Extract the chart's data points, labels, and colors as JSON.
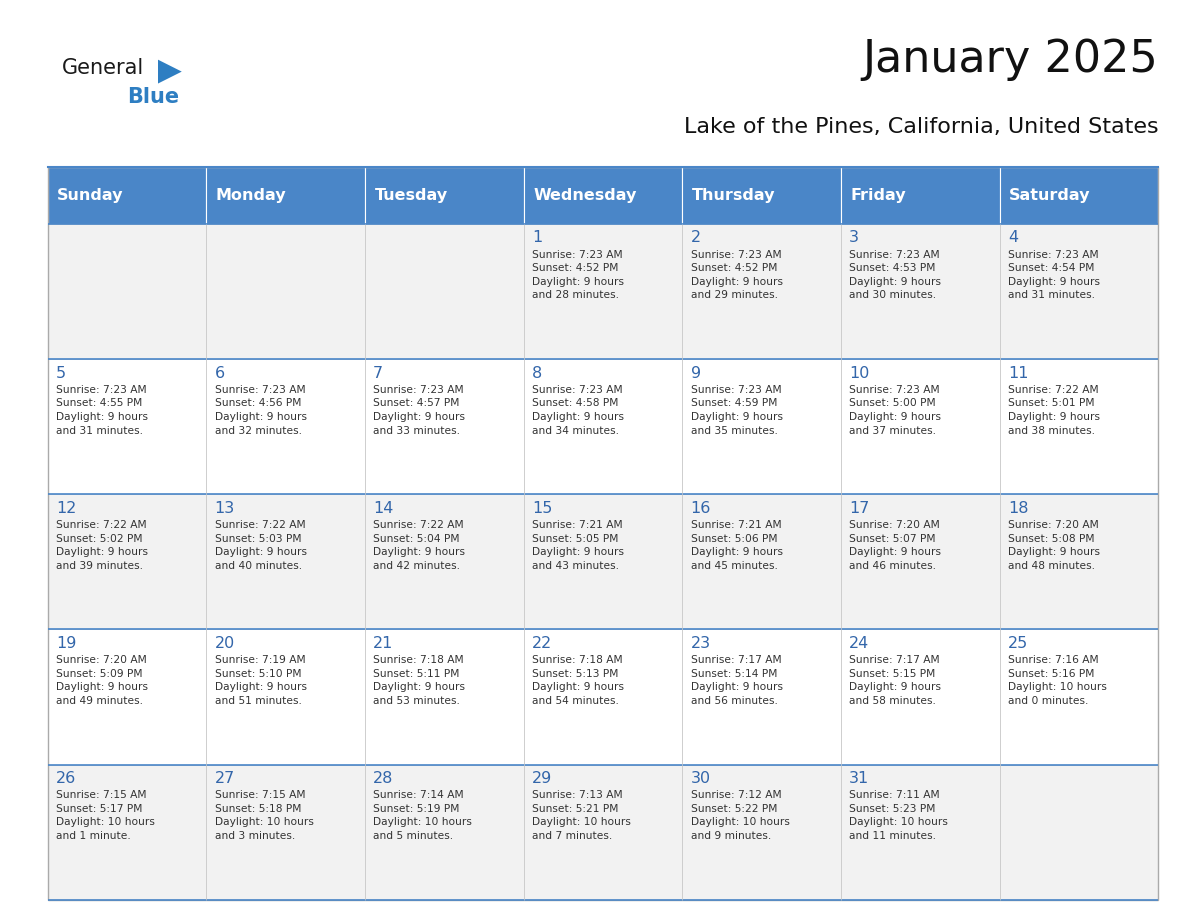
{
  "title": "January 2025",
  "subtitle": "Lake of the Pines, California, United States",
  "days_of_week": [
    "Sunday",
    "Monday",
    "Tuesday",
    "Wednesday",
    "Thursday",
    "Friday",
    "Saturday"
  ],
  "header_bg": "#4A86C8",
  "header_text": "#FFFFFF",
  "row_bg_odd": "#F2F2F2",
  "row_bg_even": "#FFFFFF",
  "day_num_color": "#3366AA",
  "cell_text_color": "#333333",
  "border_color": "#AAAAAA",
  "calendar_data": [
    [
      null,
      null,
      null,
      {
        "day": 1,
        "sunrise": "7:23 AM",
        "sunset": "4:52 PM",
        "daylight": "9 hours\nand 28 minutes."
      },
      {
        "day": 2,
        "sunrise": "7:23 AM",
        "sunset": "4:52 PM",
        "daylight": "9 hours\nand 29 minutes."
      },
      {
        "day": 3,
        "sunrise": "7:23 AM",
        "sunset": "4:53 PM",
        "daylight": "9 hours\nand 30 minutes."
      },
      {
        "day": 4,
        "sunrise": "7:23 AM",
        "sunset": "4:54 PM",
        "daylight": "9 hours\nand 31 minutes."
      }
    ],
    [
      {
        "day": 5,
        "sunrise": "7:23 AM",
        "sunset": "4:55 PM",
        "daylight": "9 hours\nand 31 minutes."
      },
      {
        "day": 6,
        "sunrise": "7:23 AM",
        "sunset": "4:56 PM",
        "daylight": "9 hours\nand 32 minutes."
      },
      {
        "day": 7,
        "sunrise": "7:23 AM",
        "sunset": "4:57 PM",
        "daylight": "9 hours\nand 33 minutes."
      },
      {
        "day": 8,
        "sunrise": "7:23 AM",
        "sunset": "4:58 PM",
        "daylight": "9 hours\nand 34 minutes."
      },
      {
        "day": 9,
        "sunrise": "7:23 AM",
        "sunset": "4:59 PM",
        "daylight": "9 hours\nand 35 minutes."
      },
      {
        "day": 10,
        "sunrise": "7:23 AM",
        "sunset": "5:00 PM",
        "daylight": "9 hours\nand 37 minutes."
      },
      {
        "day": 11,
        "sunrise": "7:22 AM",
        "sunset": "5:01 PM",
        "daylight": "9 hours\nand 38 minutes."
      }
    ],
    [
      {
        "day": 12,
        "sunrise": "7:22 AM",
        "sunset": "5:02 PM",
        "daylight": "9 hours\nand 39 minutes."
      },
      {
        "day": 13,
        "sunrise": "7:22 AM",
        "sunset": "5:03 PM",
        "daylight": "9 hours\nand 40 minutes."
      },
      {
        "day": 14,
        "sunrise": "7:22 AM",
        "sunset": "5:04 PM",
        "daylight": "9 hours\nand 42 minutes."
      },
      {
        "day": 15,
        "sunrise": "7:21 AM",
        "sunset": "5:05 PM",
        "daylight": "9 hours\nand 43 minutes."
      },
      {
        "day": 16,
        "sunrise": "7:21 AM",
        "sunset": "5:06 PM",
        "daylight": "9 hours\nand 45 minutes."
      },
      {
        "day": 17,
        "sunrise": "7:20 AM",
        "sunset": "5:07 PM",
        "daylight": "9 hours\nand 46 minutes."
      },
      {
        "day": 18,
        "sunrise": "7:20 AM",
        "sunset": "5:08 PM",
        "daylight": "9 hours\nand 48 minutes."
      }
    ],
    [
      {
        "day": 19,
        "sunrise": "7:20 AM",
        "sunset": "5:09 PM",
        "daylight": "9 hours\nand 49 minutes."
      },
      {
        "day": 20,
        "sunrise": "7:19 AM",
        "sunset": "5:10 PM",
        "daylight": "9 hours\nand 51 minutes."
      },
      {
        "day": 21,
        "sunrise": "7:18 AM",
        "sunset": "5:11 PM",
        "daylight": "9 hours\nand 53 minutes."
      },
      {
        "day": 22,
        "sunrise": "7:18 AM",
        "sunset": "5:13 PM",
        "daylight": "9 hours\nand 54 minutes."
      },
      {
        "day": 23,
        "sunrise": "7:17 AM",
        "sunset": "5:14 PM",
        "daylight": "9 hours\nand 56 minutes."
      },
      {
        "day": 24,
        "sunrise": "7:17 AM",
        "sunset": "5:15 PM",
        "daylight": "9 hours\nand 58 minutes."
      },
      {
        "day": 25,
        "sunrise": "7:16 AM",
        "sunset": "5:16 PM",
        "daylight": "10 hours\nand 0 minutes."
      }
    ],
    [
      {
        "day": 26,
        "sunrise": "7:15 AM",
        "sunset": "5:17 PM",
        "daylight": "10 hours\nand 1 minute."
      },
      {
        "day": 27,
        "sunrise": "7:15 AM",
        "sunset": "5:18 PM",
        "daylight": "10 hours\nand 3 minutes."
      },
      {
        "day": 28,
        "sunrise": "7:14 AM",
        "sunset": "5:19 PM",
        "daylight": "10 hours\nand 5 minutes."
      },
      {
        "day": 29,
        "sunrise": "7:13 AM",
        "sunset": "5:21 PM",
        "daylight": "10 hours\nand 7 minutes."
      },
      {
        "day": 30,
        "sunrise": "7:12 AM",
        "sunset": "5:22 PM",
        "daylight": "10 hours\nand 9 minutes."
      },
      {
        "day": 31,
        "sunrise": "7:11 AM",
        "sunset": "5:23 PM",
        "daylight": "10 hours\nand 11 minutes."
      },
      null
    ]
  ],
  "logo_text_general": "General",
  "logo_text_blue": "Blue",
  "logo_triangle_color": "#2E7EC2"
}
